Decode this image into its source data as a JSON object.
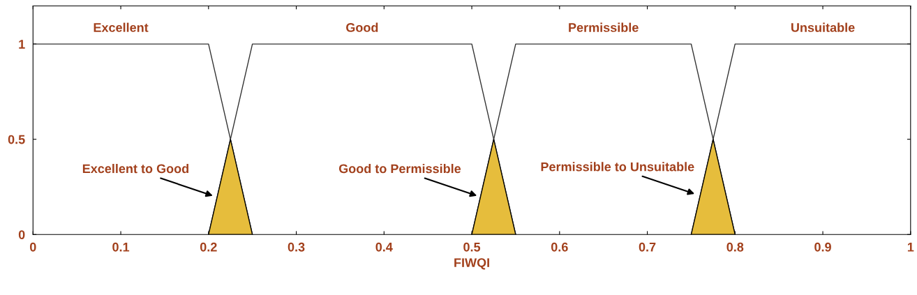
{
  "chart_data": {
    "type": "line",
    "xlabel": "FIWQI",
    "xlim": [
      0,
      1
    ],
    "ylim": [
      0,
      1.2
    ],
    "xticks": [
      0,
      0.1,
      0.2,
      0.3,
      0.4,
      0.5,
      0.6,
      0.7,
      0.8,
      0.9,
      1
    ],
    "yticks": [
      0,
      0.5,
      1
    ],
    "series": [
      {
        "name": "Excellent",
        "color": "#333333",
        "x": [
          0,
          0.2,
          0.25
        ],
        "values": [
          1,
          1,
          0
        ]
      },
      {
        "name": "Good",
        "color": "#333333",
        "x": [
          0.2,
          0.25,
          0.5,
          0.55
        ],
        "values": [
          0,
          1,
          1,
          0
        ]
      },
      {
        "name": "Permissible",
        "color": "#333333",
        "x": [
          0.5,
          0.55,
          0.75,
          0.8
        ],
        "values": [
          0,
          1,
          1,
          0
        ]
      },
      {
        "name": "Unsuitable",
        "color": "#333333",
        "x": [
          0.75,
          0.8,
          1
        ],
        "values": [
          0,
          1,
          1
        ]
      },
      {
        "type": "area",
        "color": "#e6bd3c",
        "x": [
          0.2,
          0.225,
          0.25
        ],
        "values": [
          0,
          0.5,
          0
        ]
      },
      {
        "type": "area",
        "color": "#e6bd3c",
        "x": [
          0.5,
          0.525,
          0.55
        ],
        "values": [
          0,
          0.5,
          0
        ]
      },
      {
        "type": "area",
        "color": "#e6bd3c",
        "x": [
          0.75,
          0.775,
          0.8
        ],
        "values": [
          0,
          0.5,
          0
        ]
      }
    ],
    "annotations": [
      {
        "text": "Excellent to Good",
        "x": 0.207,
        "y": 0.2
      },
      {
        "text": "Good to Permissible",
        "x": 0.508,
        "y": 0.2
      },
      {
        "text": "Permissible to Unsuitable",
        "x": 0.756,
        "y": 0.21
      }
    ]
  }
}
